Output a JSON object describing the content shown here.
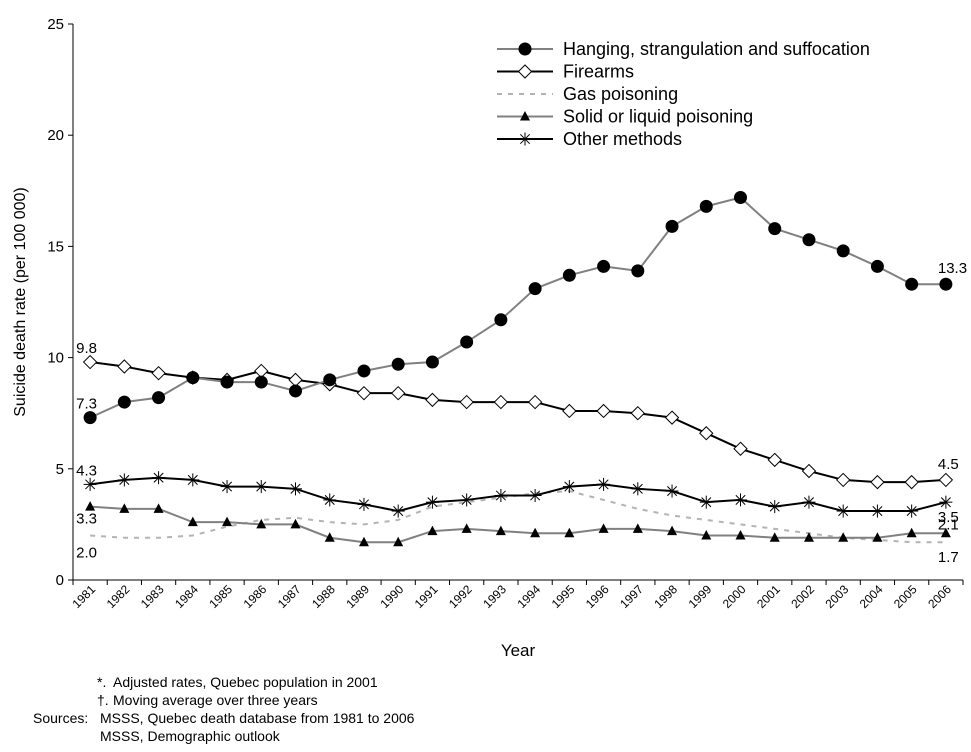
{
  "chart_data": {
    "type": "line",
    "xlabel": "Year",
    "ylabel": "Suicide death rate (per 100 000)",
    "ylim": [
      0,
      25
    ],
    "yticks": [
      "0",
      "5",
      "10",
      "15",
      "20",
      "25"
    ],
    "legend_position": "top-right",
    "categories": [
      "1981",
      "1982",
      "1983",
      "1984",
      "1985",
      "1986",
      "1987",
      "1988",
      "1989",
      "1990",
      "1991",
      "1992",
      "1993",
      "1994",
      "1995",
      "1996",
      "1997",
      "1998",
      "1999",
      "2000",
      "2001",
      "2002",
      "2003",
      "2004",
      "2005",
      "2006"
    ],
    "series": [
      {
        "name": "Hanging, strangulation and suffocation",
        "marker": "filled-circle",
        "line_color": "#808080",
        "values": [
          7.3,
          8.0,
          8.2,
          9.1,
          8.9,
          8.9,
          8.5,
          9.0,
          9.4,
          9.7,
          9.8,
          10.7,
          11.7,
          13.1,
          13.7,
          14.1,
          13.9,
          15.9,
          16.8,
          17.2,
          15.8,
          15.3,
          14.8,
          14.1,
          13.3,
          13.3
        ]
      },
      {
        "name": "Firearms",
        "marker": "open-diamond",
        "line_color": "#000000",
        "values": [
          9.8,
          9.6,
          9.3,
          9.1,
          9.0,
          9.4,
          9.0,
          8.8,
          8.4,
          8.4,
          8.1,
          8.0,
          8.0,
          8.0,
          7.6,
          7.6,
          7.5,
          7.3,
          6.6,
          5.9,
          5.4,
          4.9,
          4.5,
          4.4,
          4.4,
          4.5
        ]
      },
      {
        "name": "Gas poisoning",
        "marker": "none",
        "line_color": "#b3b3b3",
        "dashed": true,
        "values": [
          2.0,
          1.9,
          1.9,
          2.0,
          2.4,
          2.7,
          2.8,
          2.6,
          2.5,
          2.7,
          3.3,
          3.5,
          3.7,
          3.9,
          4.0,
          3.6,
          3.2,
          2.9,
          2.7,
          2.5,
          2.3,
          2.1,
          1.9,
          1.8,
          1.7,
          1.7
        ]
      },
      {
        "name": "Solid or liquid poisoning",
        "marker": "filled-triangle",
        "line_color": "#808080",
        "values": [
          3.3,
          3.2,
          3.2,
          2.6,
          2.6,
          2.5,
          2.5,
          1.9,
          1.7,
          1.7,
          2.2,
          2.3,
          2.2,
          2.1,
          2.1,
          2.3,
          2.3,
          2.2,
          2.0,
          2.0,
          1.9,
          1.9,
          1.9,
          1.9,
          2.1,
          2.1
        ]
      },
      {
        "name": "Other methods",
        "marker": "asterisk",
        "line_color": "#000000",
        "values": [
          4.3,
          4.5,
          4.6,
          4.5,
          4.2,
          4.2,
          4.1,
          3.6,
          3.4,
          3.1,
          3.5,
          3.6,
          3.8,
          3.8,
          4.2,
          4.3,
          4.1,
          4.0,
          3.5,
          3.6,
          3.3,
          3.5,
          3.1,
          3.1,
          3.1,
          3.5
        ]
      }
    ],
    "annotations": [
      {
        "text": "9.8",
        "category": "1981",
        "value": 9.8,
        "side": "left-above"
      },
      {
        "text": "7.3",
        "category": "1981",
        "value": 7.3,
        "side": "left-above"
      },
      {
        "text": "4.3",
        "category": "1981",
        "value": 4.3,
        "side": "left-above"
      },
      {
        "text": "3.3",
        "category": "1981",
        "value": 3.3,
        "side": "left-below"
      },
      {
        "text": "2.0",
        "category": "1981",
        "value": 2.0,
        "side": "left-below"
      },
      {
        "text": "13.3",
        "category": "2006",
        "value": 13.3,
        "side": "right-above"
      },
      {
        "text": "4.5",
        "category": "2006",
        "value": 4.5,
        "side": "right-above"
      },
      {
        "text": "3.5",
        "category": "2006",
        "value": 3.5,
        "side": "right-below"
      },
      {
        "text": "2.1",
        "category": "2006",
        "value": 2.1,
        "side": "right-mid"
      },
      {
        "text": "1.7",
        "category": "2006",
        "value": 1.7,
        "side": "right-below"
      }
    ]
  },
  "notes": {
    "line1_mark": "*.",
    "line1_text": "Adjusted rates, Quebec population in 2001",
    "line2_mark": "†.",
    "line2_text": "Moving average over three years",
    "line3_label": "Sources:",
    "line3_text": "MSSS, Quebec death database from 1981 to 2006",
    "line4_text": "MSSS, Demographic outlook"
  }
}
